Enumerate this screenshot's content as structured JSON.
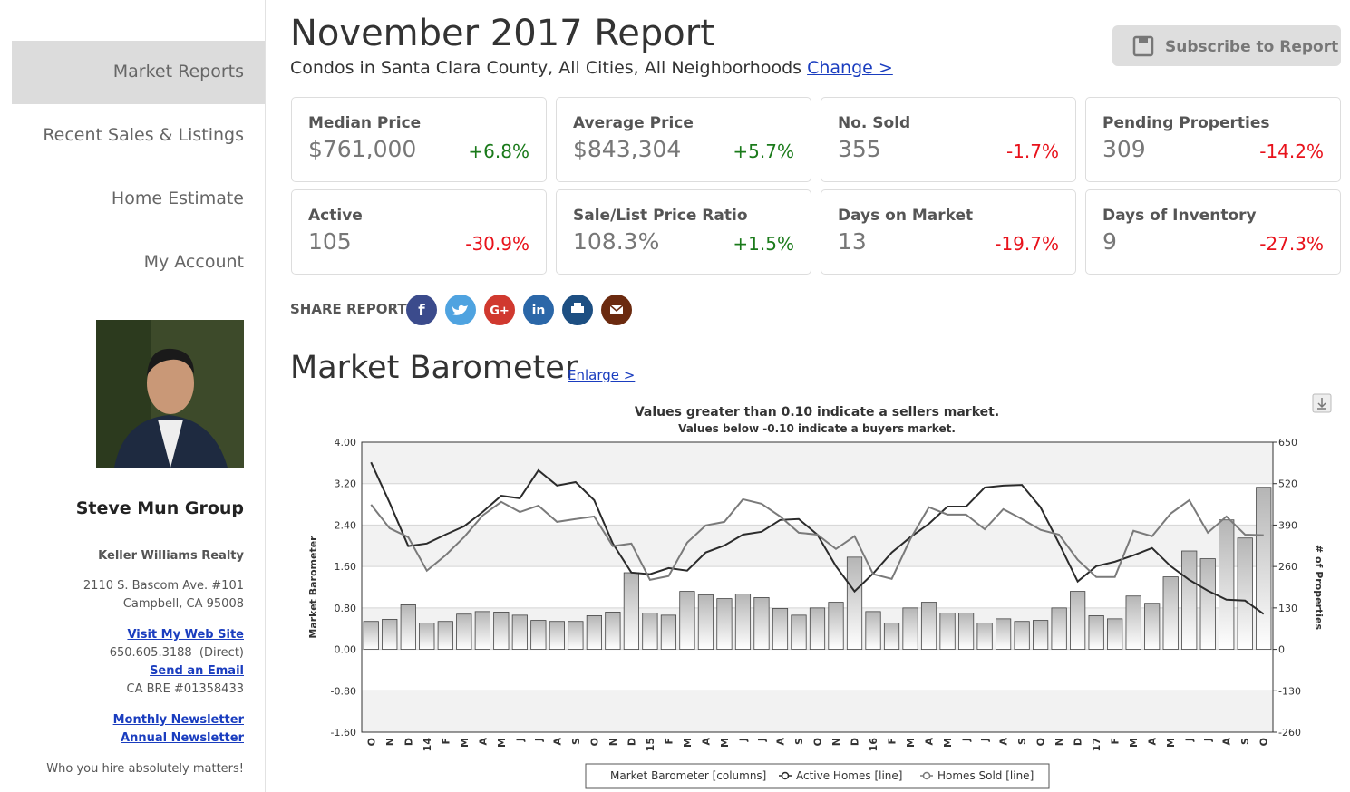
{
  "sidebar": {
    "nav": [
      "Market Reports",
      "Recent Sales & Listings",
      "Home Estimate",
      "My Account"
    ],
    "name": "Steve Mun Group",
    "company": "Keller Williams Realty",
    "address": [
      "2110 S. Bascom Ave. #101",
      "Campbell, CA 95008"
    ],
    "website": "Visit My Web Site",
    "phone": "650.605.3188  (Direct)",
    "email": "Send an Email",
    "license": "CA BRE #01358433",
    "newsletters": [
      "Monthly Newsletter",
      "Annual Newsletter"
    ],
    "tagline": "Who you hire absolutely matters!"
  },
  "header": {
    "title": "November 2017 Report",
    "subtitle": "Condos in Santa Clara County, All Cities, All Neighborhoods",
    "change": "Change >",
    "subscribe": "Subscribe to Report"
  },
  "stats": [
    {
      "label": "Median Price",
      "value": "$761,000",
      "change": "+6.8%",
      "color": "#1a7a1a"
    },
    {
      "label": "Average Price",
      "value": "$843,304",
      "change": "+5.7%",
      "color": "#1a7a1a"
    },
    {
      "label": "No. Sold",
      "value": "355",
      "change": "-1.7%",
      "color": "#e8121b"
    },
    {
      "label": "Pending Properties",
      "value": "309",
      "change": "-14.2%",
      "color": "#e8121b"
    },
    {
      "label": "Active",
      "value": "105",
      "change": "-30.9%",
      "color": "#e8121b"
    },
    {
      "label": "Sale/List Price Ratio",
      "value": "108.3%",
      "change": "+1.5%",
      "color": "#1a7a1a"
    },
    {
      "label": "Days on Market",
      "value": "13",
      "change": "-19.7%",
      "color": "#e8121b"
    },
    {
      "label": "Days of Inventory",
      "value": "9",
      "change": "-27.3%",
      "color": "#e8121b"
    }
  ],
  "share": {
    "label": "SHARE REPORT",
    "icons": [
      "f",
      "G+",
      "in"
    ]
  },
  "barometer": {
    "title": "Market Barometer",
    "enlarge": "Enlarge >"
  },
  "chart_data": {
    "type": "combo",
    "title": "Values greater than 0.10 indicate a sellers market.",
    "subtitle": "Values below -0.10 indicate a buyers market.",
    "ylabel": "Market Barometer",
    "y2label": "# of Properties",
    "categories": [
      "O",
      "N",
      "D",
      "14",
      "F",
      "M",
      "A",
      "M",
      "J",
      "J",
      "A",
      "S",
      "O",
      "N",
      "D",
      "15",
      "F",
      "M",
      "A",
      "M",
      "J",
      "J",
      "A",
      "S",
      "O",
      "N",
      "D",
      "16",
      "F",
      "M",
      "A",
      "M",
      "J",
      "J",
      "A",
      "S",
      "O",
      "N",
      "D",
      "17",
      "F",
      "M",
      "A",
      "M",
      "J",
      "J",
      "A",
      "S",
      "O"
    ],
    "series": [
      {
        "name": "Market Barometer [columns]",
        "type": "bar",
        "color": "#b5b5b5",
        "values": [
          0.54,
          0.58,
          0.86,
          0.51,
          0.54,
          0.68,
          0.73,
          0.72,
          0.66,
          0.56,
          0.54,
          0.54,
          0.65,
          0.72,
          1.48,
          0.7,
          0.66,
          1.12,
          1.05,
          0.98,
          1.07,
          1.0,
          0.79,
          0.66,
          0.8,
          0.91,
          1.78,
          0.73,
          0.51,
          0.8,
          0.91,
          0.7,
          0.7,
          0.51,
          0.59,
          0.54,
          0.56,
          0.8,
          1.12,
          0.65,
          0.59,
          1.03,
          0.89,
          1.4,
          1.9,
          1.75,
          2.5,
          2.15,
          3.13
        ]
      },
      {
        "name": "Active Homes [line]",
        "type": "line",
        "axis": "y2",
        "color": "#2b2b2b",
        "values": [
          587,
          460,
          324,
          332,
          360,
          386,
          431,
          482,
          474,
          562,
          514,
          525,
          468,
          332,
          241,
          236,
          255,
          247,
          304,
          326,
          360,
          369,
          406,
          409,
          360,
          261,
          182,
          238,
          304,
          352,
          394,
          448,
          448,
          508,
          514,
          516,
          446,
          332,
          213,
          261,
          275,
          295,
          318,
          261,
          218,
          184,
          156,
          153,
          111
        ]
      },
      {
        "name": "Homes Sold [line]",
        "type": "line",
        "axis": "y2",
        "color": "#7a7a7a",
        "values": [
          454,
          380,
          352,
          247,
          295,
          352,
          420,
          463,
          431,
          451,
          400,
          409,
          417,
          324,
          332,
          218,
          230,
          335,
          389,
          400,
          471,
          457,
          417,
          366,
          360,
          315,
          355,
          236,
          221,
          346,
          446,
          423,
          423,
          377,
          440,
          409,
          375,
          360,
          281,
          227,
          227,
          372,
          355,
          426,
          468,
          366,
          417,
          360,
          358
        ]
      }
    ],
    "ylim": [
      -1.6,
      4
    ],
    "yticks": [
      {
        "value": -1.6,
        "label": "-1.60"
      },
      {
        "value": -0.8,
        "label": "-0.80"
      },
      {
        "value": 0,
        "label": "0.00"
      },
      {
        "value": 0.8,
        "label": "0.80"
      },
      {
        "value": 1.6,
        "label": "1.60"
      },
      {
        "value": 2.4,
        "label": "2.40"
      },
      {
        "value": 3.2,
        "label": "3.20"
      },
      {
        "value": 4,
        "label": "4.00"
      }
    ],
    "y2lim": [
      -260,
      650
    ],
    "y2ticks": [
      -260,
      -130,
      0,
      130,
      260,
      390,
      520,
      650
    ],
    "grid": true
  }
}
